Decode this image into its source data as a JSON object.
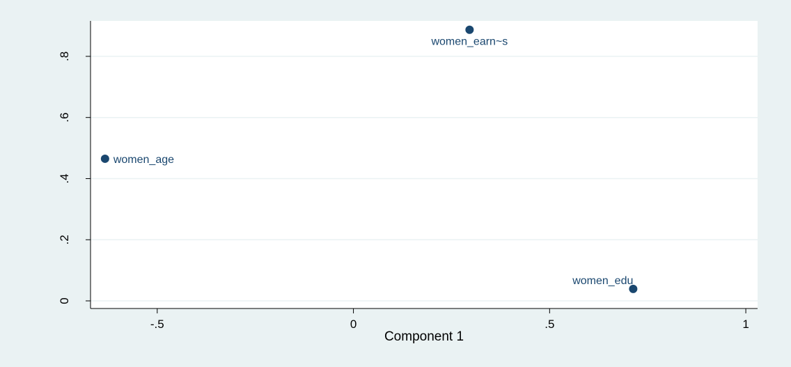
{
  "chart_data": {
    "type": "scatter",
    "x_label": "Component 1",
    "points": [
      {
        "label": "women_age",
        "x": -0.633,
        "y": 0.465
      },
      {
        "label": "women_earn~s",
        "x": 0.296,
        "y": 0.887
      },
      {
        "label": "women_edu",
        "x": 0.713,
        "y": 0.039
      }
    ],
    "color": "#1a476f",
    "xlim": [
      -0.67,
      1.03
    ],
    "ylim": [
      -0.025,
      0.916
    ],
    "xticks": [
      {
        "value": -0.5,
        "label": "-.5"
      },
      0,
      {
        "value": 0.5,
        "label": ".5"
      },
      1
    ],
    "yticks": [
      0,
      {
        "value": 0.2,
        "label": ".2"
      },
      {
        "value": 0.4,
        "label": ".4"
      },
      {
        "value": 0.6,
        "label": ".6"
      },
      {
        "value": 0.8,
        "label": ".8"
      }
    ],
    "grid": true
  }
}
